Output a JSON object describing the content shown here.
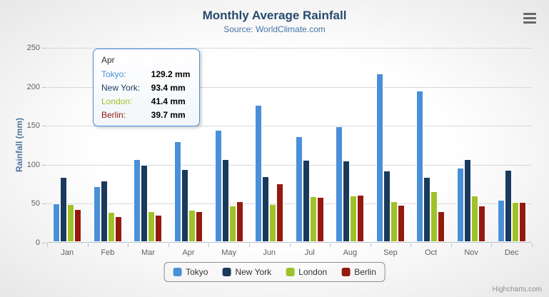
{
  "chart_data": {
    "type": "bar",
    "title": "Monthly Average Rainfall",
    "subtitle": "Source: WorldClimate.com",
    "xlabel": "",
    "ylabel": "Rainfall (mm)",
    "ylim": [
      0,
      250
    ],
    "yticks": [
      0,
      50,
      100,
      150,
      200,
      250
    ],
    "grid": true,
    "legend_position": "bottom",
    "categories": [
      "Jan",
      "Feb",
      "Mar",
      "Apr",
      "May",
      "Jun",
      "Jul",
      "Aug",
      "Sep",
      "Oct",
      "Nov",
      "Dec"
    ],
    "series": [
      {
        "name": "Tokyo",
        "color": "#4a90d9",
        "values": [
          49.9,
          71.5,
          106.4,
          129.2,
          144.0,
          176.0,
          135.6,
          148.5,
          216.4,
          194.1,
          95.6,
          54.4
        ]
      },
      {
        "name": "New York",
        "color": "#1a3a5c",
        "values": [
          83.6,
          78.8,
          98.5,
          93.4,
          106.0,
          84.5,
          105.0,
          104.3,
          91.2,
          83.5,
          106.6,
          92.3
        ]
      },
      {
        "name": "London",
        "color": "#9fc228",
        "values": [
          48.9,
          38.8,
          39.3,
          41.4,
          47.0,
          48.3,
          59.0,
          59.6,
          52.4,
          65.2,
          59.3,
          51.2
        ]
      },
      {
        "name": "Berlin",
        "color": "#941a0f",
        "values": [
          42.4,
          33.2,
          34.5,
          39.7,
          52.6,
          75.5,
          57.4,
          60.4,
          47.6,
          39.1,
          46.8,
          51.1
        ]
      }
    ]
  },
  "tooltip": {
    "header": "Apr",
    "border_color": "#4a90d9",
    "rows": [
      {
        "label": "Tokyo:",
        "value": "129.2 mm",
        "color": "#4a90d9"
      },
      {
        "label": "New York:",
        "value": "93.4 mm",
        "color": "#1a3a5c"
      },
      {
        "label": "London:",
        "value": "41.4 mm",
        "color": "#9fc228"
      },
      {
        "label": "Berlin:",
        "value": "39.7 mm",
        "color": "#941a0f"
      }
    ]
  },
  "menu_icon": "hamburger-icon",
  "credits": "Highcharts.com"
}
